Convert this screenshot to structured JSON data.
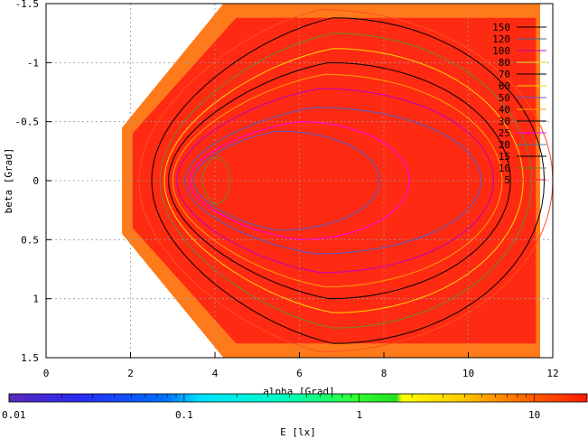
{
  "chart_data": {
    "type": "heatmap",
    "title": "",
    "xlabel": "alpha [Grad]",
    "ylabel": "beta [Grad]",
    "xlim": [
      0,
      12
    ],
    "ylim": [
      -1.5,
      1.5
    ],
    "y_reversed": true,
    "x_ticks": [
      0,
      2,
      4,
      6,
      8,
      10,
      12
    ],
    "y_ticks": [
      -1.5,
      -1,
      -0.5,
      0,
      0.5,
      1,
      1.5
    ],
    "grid": true,
    "colorbar": {
      "label": "E [lx]",
      "scale": "log",
      "range": [
        0.01,
        20
      ],
      "ticks": [
        0.01,
        0.1,
        1,
        10
      ],
      "tick_labels": [
        "0.01",
        "0.1",
        "1",
        "10"
      ]
    },
    "contour_levels": [
      {
        "value": 150,
        "color": "#000000"
      },
      {
        "value": 120,
        "color": "#2f6f8f"
      },
      {
        "value": 100,
        "color": "#c000c0"
      },
      {
        "value": 80,
        "color": "#e0e020"
      },
      {
        "value": 70,
        "color": "#000000"
      },
      {
        "value": 60,
        "color": "#ffd700"
      },
      {
        "value": 50,
        "color": "#4a5fd0"
      },
      {
        "value": 40,
        "color": "#ffa000"
      },
      {
        "value": 30,
        "color": "#000000"
      },
      {
        "value": 25,
        "color": "#ff00ff"
      },
      {
        "value": 20,
        "color": "#3f7f9f"
      },
      {
        "value": 15,
        "color": "#000000"
      },
      {
        "value": 10,
        "color": "#6a8a30"
      },
      {
        "value": 5,
        "color": "#ff2020"
      }
    ],
    "legend_position": "top-right",
    "field_region": {
      "x_left": 1.8,
      "x_apex": 4.2,
      "x_right": 11.7,
      "y_left_half_width": 0.45,
      "y_full_half_width": 1.5
    },
    "contours": [
      {
        "level": 5,
        "color": "#ff5020",
        "cx": 6.5,
        "ry": 1.45,
        "xl": 2.2,
        "xr": 12
      },
      {
        "level": 10,
        "color": "#000000",
        "cx": 6.8,
        "ry": 1.38,
        "xl": 2.5,
        "xr": 11.8
      },
      {
        "level": 15,
        "color": "#6a8a30",
        "cx": 6.8,
        "ry": 1.25,
        "xl": 2.7,
        "xr": 11.5
      },
      {
        "level": 20,
        "color": "#ffd700",
        "cx": 6.8,
        "ry": 1.12,
        "xl": 2.8,
        "xr": 11.3
      },
      {
        "level": 25,
        "color": "#000000",
        "cx": 6.7,
        "ry": 1.0,
        "xl": 2.9,
        "xr": 11.0
      },
      {
        "level": 30,
        "color": "#ffa000",
        "cx": 6.6,
        "ry": 0.9,
        "xl": 3.0,
        "xr": 10.8
      },
      {
        "level": 40,
        "color": "#c000c0",
        "cx": 6.5,
        "ry": 0.78,
        "xl": 3.1,
        "xr": 10.6
      },
      {
        "level": 50,
        "color": "#4a5fd0",
        "cx": 6.4,
        "ry": 0.62,
        "xl": 3.3,
        "xr": 10.3
      },
      {
        "level": 60,
        "color": "#ff00ff",
        "cx": 6.0,
        "ry": 0.5,
        "xl": 3.4,
        "xr": 8.6
      },
      {
        "level": 70,
        "color": "#4a5fd0",
        "cx": 5.5,
        "ry": 0.42,
        "xl": 3.5,
        "xr": 7.9
      },
      {
        "level": 100,
        "color": "#6a8a30",
        "cx": 4.0,
        "ry": 0.2,
        "xl": 3.7,
        "xr": 4.35
      }
    ]
  }
}
